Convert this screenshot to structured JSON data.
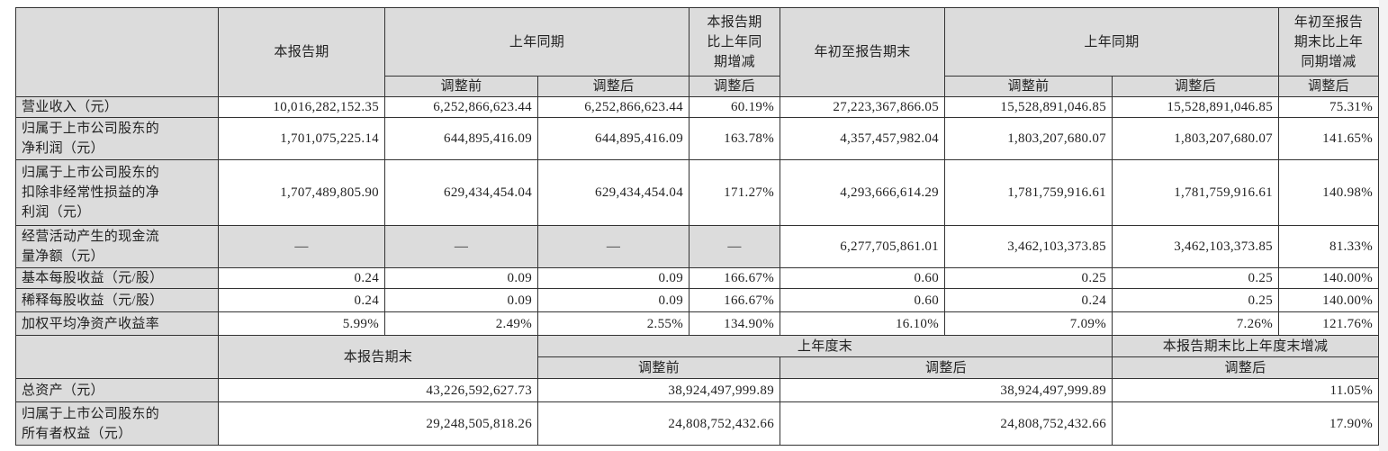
{
  "header": {
    "current_period": "本报告期",
    "prior_same_period": "上年同期",
    "yoy_change_lines": [
      "本报告期",
      "比上年同",
      "期增减"
    ],
    "ytd": "年初至报告期末",
    "prior_ytd": "上年同期",
    "ytd_change_lines": [
      "年初至报告",
      "期末比上年",
      "同期增减"
    ],
    "before_adj": "调整前",
    "after_adj": "调整后"
  },
  "rows": [
    {
      "label_lines": [
        "营业收入（元）"
      ],
      "values": [
        "10,016,282,152.35",
        "6,252,866,623.44",
        "6,252,866,623.44",
        "60.19%",
        "27,223,367,866.05",
        "15,528,891,046.85",
        "15,528,891,046.85",
        "75.31%"
      ]
    },
    {
      "label_lines": [
        "归属于上市公司股东的",
        "净利润（元）"
      ],
      "values": [
        "1,701,075,225.14",
        "644,895,416.09",
        "644,895,416.09",
        "163.78%",
        "4,357,457,982.04",
        "1,803,207,680.07",
        "1,803,207,680.07",
        "141.65%"
      ]
    },
    {
      "label_lines": [
        "归属于上市公司股东的",
        "扣除非经常性损益的净",
        "利润（元）"
      ],
      "values": [
        "1,707,489,805.90",
        "629,434,454.04",
        "629,434,454.04",
        "171.27%",
        "4,293,666,614.29",
        "1,781,759,916.61",
        "1,781,759,916.61",
        "140.98%"
      ]
    },
    {
      "label_lines": [
        "经营活动产生的现金流",
        "量净额（元）"
      ],
      "values": [
        "—",
        "—",
        "—",
        "—",
        "6,277,705,861.01",
        "3,462,103,373.85",
        "3,462,103,373.85",
        "81.33%"
      ]
    },
    {
      "label_lines": [
        "基本每股收益（元/股）"
      ],
      "values": [
        "0.24",
        "0.09",
        "0.09",
        "166.67%",
        "0.60",
        "0.25",
        "0.25",
        "140.00%"
      ]
    },
    {
      "label_lines": [
        "稀释每股收益（元/股）"
      ],
      "values": [
        "0.24",
        "0.09",
        "0.09",
        "166.67%",
        "0.60",
        "0.24",
        "0.25",
        "140.00%"
      ]
    },
    {
      "label_lines": [
        "加权平均净资产收益率"
      ],
      "values": [
        "5.99%",
        "2.49%",
        "2.55%",
        "134.90%",
        "16.10%",
        "7.09%",
        "7.26%",
        "121.76%"
      ]
    }
  ],
  "balance_header": {
    "period_end": "本报告期末",
    "prior_year_end": "上年度末",
    "change": "本报告期末比上年度末增减",
    "before_adj": "调整前",
    "after_adj": "调整后",
    "change_after_adj": "调整后"
  },
  "balance_rows": [
    {
      "label_lines": [
        "总资产（元）"
      ],
      "values": [
        "43,226,592,627.73",
        "38,924,497,999.89",
        "38,924,497,999.89",
        "11.05%"
      ]
    },
    {
      "label_lines": [
        "归属于上市公司股东的",
        "所有者权益（元）"
      ],
      "values": [
        "29,248,505,818.26",
        "24,808,752,432.66",
        "24,808,752,432.66",
        "17.90%"
      ]
    }
  ]
}
